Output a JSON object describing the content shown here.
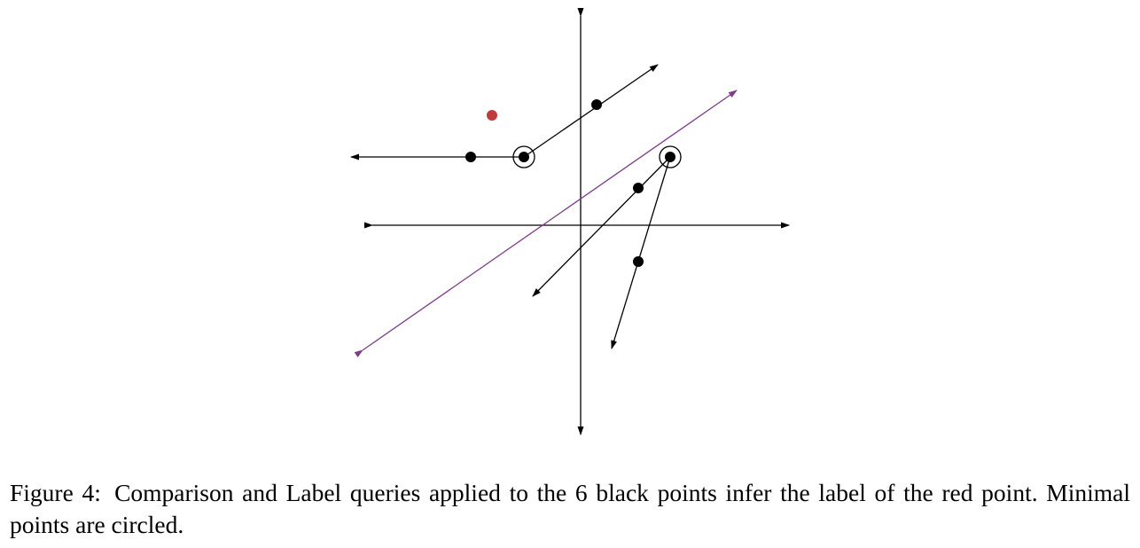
{
  "figure": {
    "colors": {
      "axis": "#000000",
      "point": "#000000",
      "query_point": "#c0393b",
      "separator": "#7d3b8a"
    },
    "axes": {
      "arrowheads": "both ends"
    },
    "black_points": [
      {
        "id": "p1",
        "circled": false
      },
      {
        "id": "p2",
        "circled": true
      },
      {
        "id": "p3",
        "circled": false
      },
      {
        "id": "p4",
        "circled": true
      },
      {
        "id": "p5",
        "circled": false
      },
      {
        "id": "p6",
        "circled": false
      }
    ],
    "red_point_count": 1,
    "separator_line": {
      "arrowheads": "both ends"
    }
  },
  "caption": {
    "label": "Figure 4:",
    "text": "Comparison and Label queries applied to the 6 black points infer the label of the red point. Minimal points are circled."
  }
}
